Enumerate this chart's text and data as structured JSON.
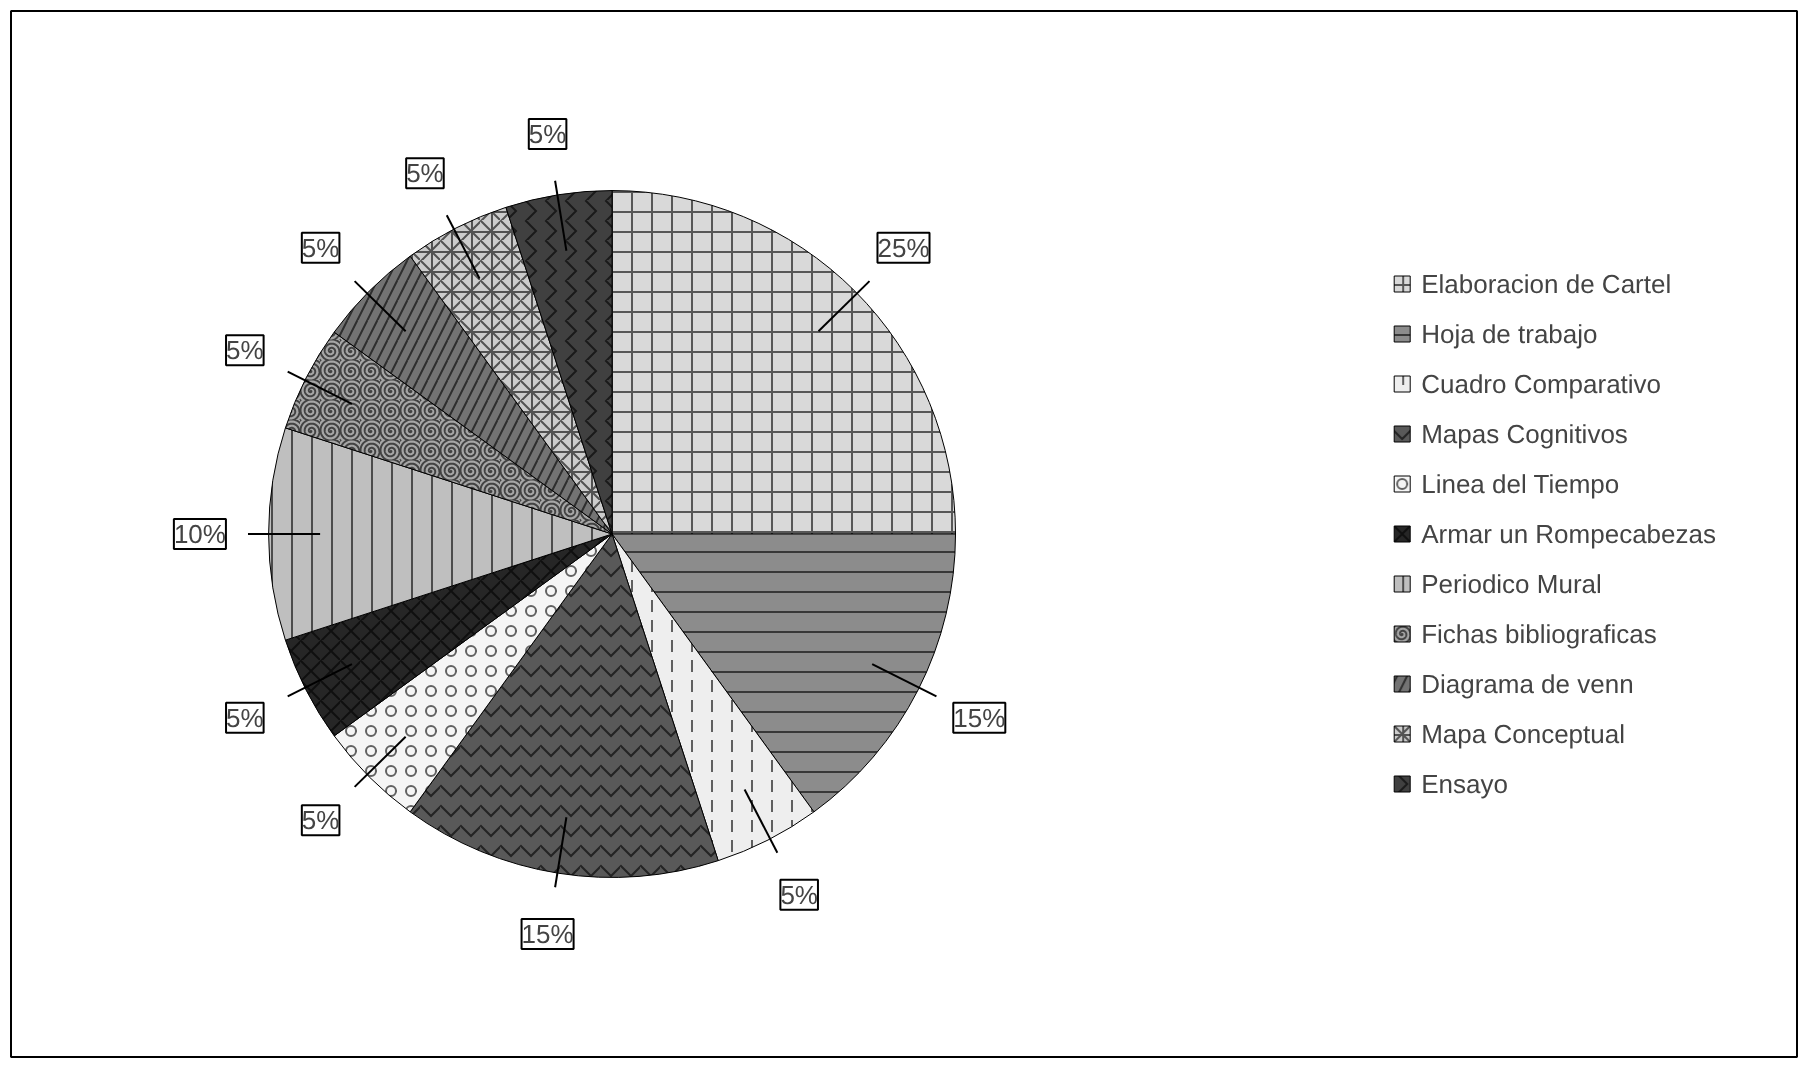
{
  "chart_data": {
    "type": "pie",
    "categories": [
      "Elaboracion de Cartel",
      "Hoja de trabajo",
      "Cuadro Comparativo",
      "Mapas Cognitivos",
      "Linea del Tiempo",
      "Armar un Rompecabezas",
      "Periodico Mural",
      "Fichas bibliograficas",
      "Diagrama de venn",
      "Mapa Conceptual",
      "Ensayo"
    ],
    "values": [
      25,
      15,
      5,
      15,
      5,
      5,
      10,
      5,
      5,
      5,
      5
    ],
    "value_labels": [
      "25%",
      "15%",
      "5%",
      "15%",
      "5%",
      "5%",
      "10%",
      "5%",
      "5%",
      "5%",
      "5%"
    ],
    "colors": [
      "#d9d9d9",
      "#8c8c8c",
      "#eeeeee",
      "#595959",
      "#f5f5f5",
      "#262626",
      "#bfbfbf",
      "#a6a6a6",
      "#737373",
      "#cccccc",
      "#404040"
    ],
    "legend": "right"
  }
}
